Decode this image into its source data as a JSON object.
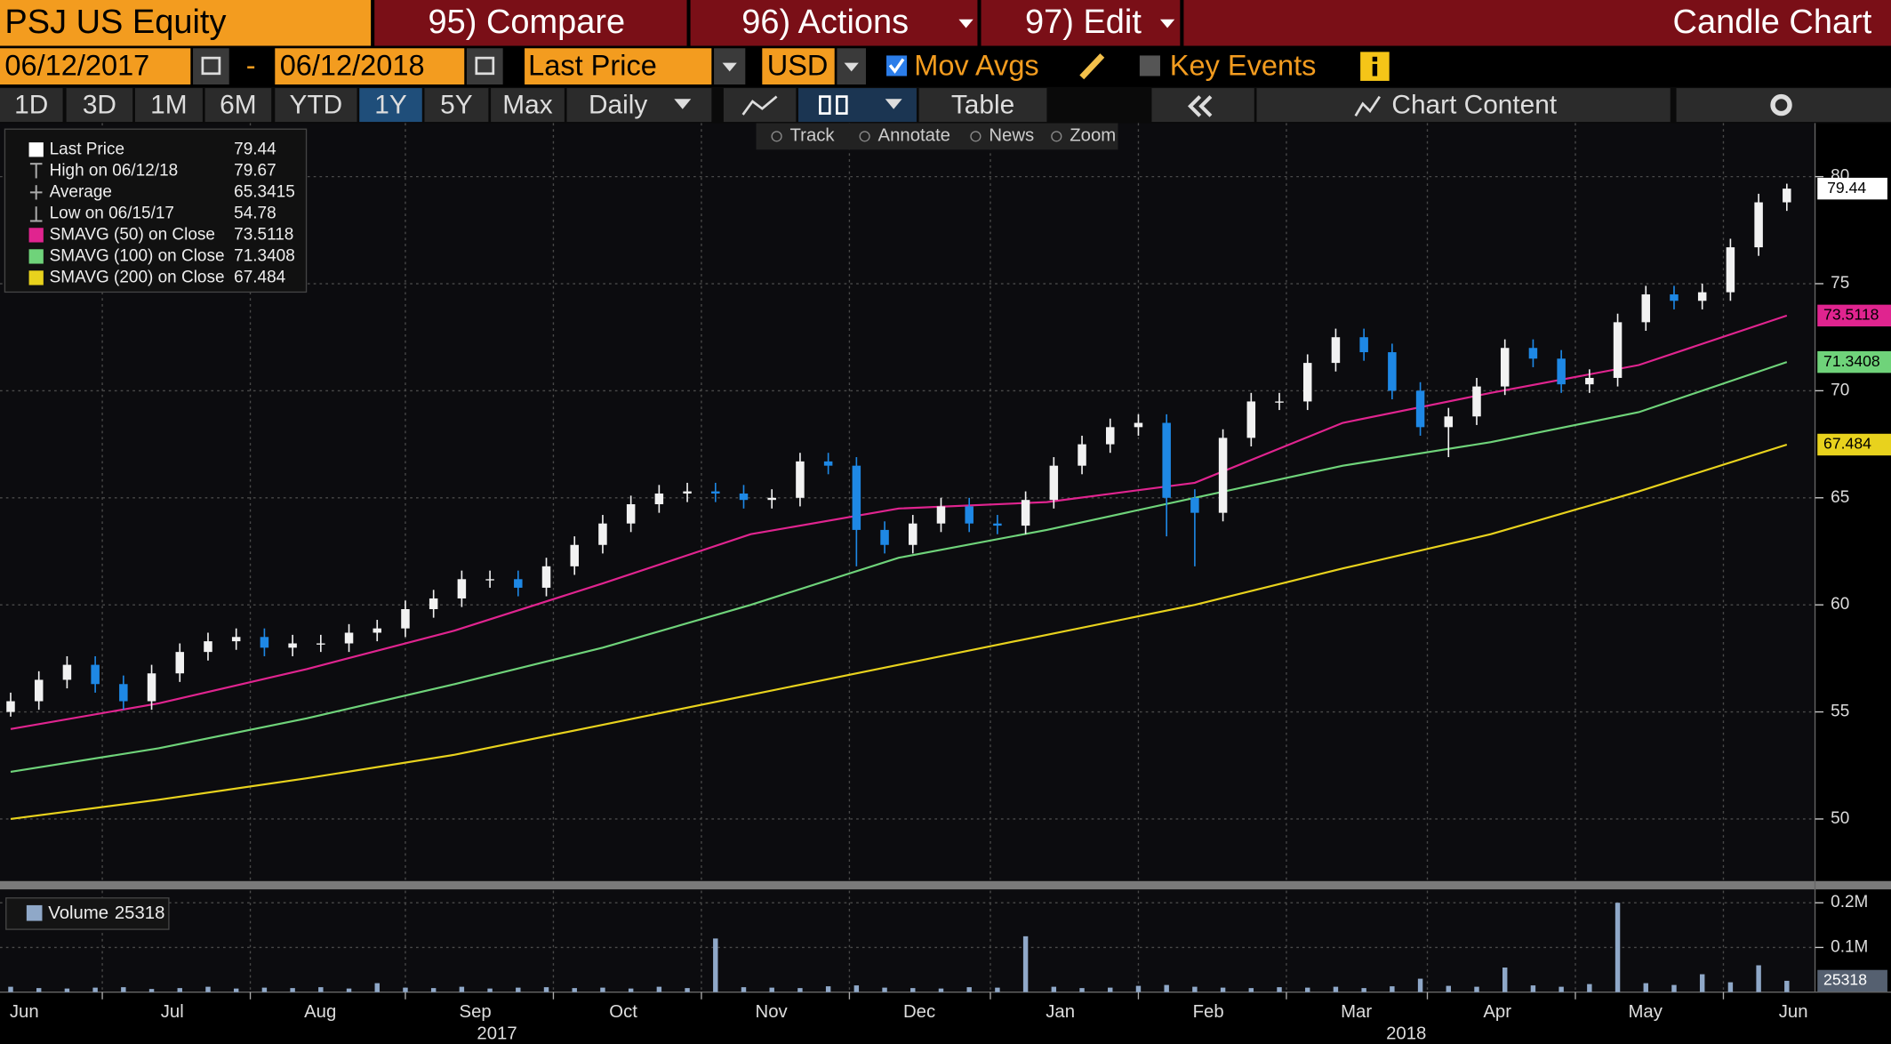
{
  "ui": {
    "ticker": "PSJ US Equity",
    "compare": "95) Compare",
    "actions": "96) Actions",
    "edit": "97) Edit",
    "title": "Candle Chart",
    "start_date": "06/12/2017",
    "date_sep": "-",
    "end_date": "06/12/2018",
    "field": "Last Price",
    "currency": "USD",
    "mov_avgs": "Mov Avgs",
    "key_events": "Key Events",
    "periods": [
      "1D",
      "3D",
      "1M",
      "6M",
      "YTD",
      "1Y",
      "5Y",
      "Max"
    ],
    "frequency": "Daily",
    "table": "Table",
    "chart_content": "Chart Content",
    "tools": [
      "Track",
      "Annotate",
      "News",
      "Zoom"
    ]
  },
  "chart_data": {
    "type": "candlestick",
    "name": "Last Price",
    "up_color": "#f2f2f2",
    "down_color": "#1e88e5",
    "grid": true,
    "xlim": [
      -1,
      256
    ],
    "xticks": [
      {
        "value": -8,
        "label": "Jun"
      },
      {
        "value": 13,
        "label": "Jul"
      },
      {
        "value": 34,
        "label": "Aug"
      },
      {
        "value": 56,
        "label": "Sep"
      },
      {
        "value": 77,
        "label": "Oct"
      },
      {
        "value": 98,
        "label": "Nov"
      },
      {
        "value": 119,
        "label": "Dec"
      },
      {
        "value": 139,
        "label": "Jan"
      },
      {
        "value": 160,
        "label": "Feb"
      },
      {
        "value": 181,
        "label": "Mar"
      },
      {
        "value": 201,
        "label": "Apr"
      },
      {
        "value": 222,
        "label": "May"
      },
      {
        "value": 243,
        "label": "Jun"
      }
    ],
    "year_ticks": [
      {
        "value": 69,
        "label": "2017"
      },
      {
        "value": 198,
        "label": "2018"
      }
    ],
    "ylim": [
      47.1,
      82.5
    ],
    "yticks": [
      50,
      55,
      60,
      65,
      70,
      75,
      80
    ],
    "x": [
      0,
      4,
      8,
      12,
      16,
      20,
      24,
      28,
      32,
      36,
      40,
      44,
      48,
      52,
      56,
      60,
      64,
      68,
      72,
      76,
      80,
      84,
      88,
      92,
      96,
      100,
      104,
      108,
      112,
      116,
      120,
      124,
      128,
      132,
      136,
      140,
      144,
      148,
      152,
      156,
      160,
      164,
      168,
      172,
      176,
      180,
      184,
      188,
      192,
      196,
      200,
      204,
      208,
      212,
      216,
      220,
      224,
      228,
      232,
      236,
      240,
      244,
      248,
      252
    ],
    "open": [
      55.0,
      55.5,
      56.5,
      57.2,
      56.3,
      55.5,
      56.8,
      57.8,
      58.3,
      58.5,
      58.0,
      58.2,
      58.2,
      58.7,
      58.9,
      59.8,
      60.3,
      61.2,
      61.2,
      60.8,
      61.8,
      62.8,
      63.8,
      64.7,
      65.2,
      65.3,
      65.2,
      64.9,
      65.0,
      66.7,
      66.5,
      63.5,
      62.8,
      63.8,
      64.6,
      63.8,
      63.7,
      64.9,
      66.5,
      67.5,
      68.3,
      68.5,
      65.0,
      64.3,
      67.8,
      69.5,
      69.5,
      71.3,
      72.5,
      71.8,
      70.0,
      68.3,
      68.8,
      70.2,
      72.0,
      71.5,
      70.3,
      70.6,
      73.2,
      74.5,
      74.2,
      74.6,
      76.7,
      78.8
    ],
    "high": [
      55.9,
      56.9,
      57.6,
      57.6,
      56.7,
      57.2,
      58.2,
      58.7,
      58.9,
      58.9,
      58.6,
      58.6,
      59.1,
      59.3,
      60.2,
      60.7,
      61.6,
      61.6,
      61.6,
      62.2,
      63.2,
      64.2,
      65.1,
      65.6,
      65.7,
      65.7,
      65.6,
      65.4,
      67.1,
      67.1,
      66.9,
      63.9,
      64.2,
      65.0,
      65.0,
      64.2,
      65.3,
      66.9,
      67.9,
      68.7,
      68.9,
      68.9,
      65.4,
      68.2,
      69.9,
      69.9,
      71.7,
      72.9,
      72.9,
      72.2,
      70.4,
      69.2,
      70.6,
      72.4,
      72.4,
      71.9,
      71.0,
      73.6,
      74.9,
      74.9,
      75.0,
      77.1,
      79.2,
      79.67
    ],
    "low": [
      54.78,
      55.1,
      56.1,
      55.9,
      55.1,
      55.1,
      56.4,
      57.4,
      57.9,
      57.6,
      57.6,
      57.8,
      57.8,
      58.3,
      58.5,
      59.4,
      59.9,
      60.8,
      60.4,
      60.4,
      61.4,
      62.4,
      63.4,
      64.3,
      64.8,
      64.8,
      64.5,
      64.5,
      64.6,
      66.1,
      61.8,
      62.4,
      62.4,
      63.4,
      63.4,
      63.3,
      63.3,
      64.5,
      66.1,
      67.1,
      67.9,
      63.2,
      61.8,
      63.9,
      67.4,
      69.1,
      69.1,
      70.9,
      71.4,
      69.6,
      67.9,
      66.9,
      68.4,
      69.8,
      71.1,
      69.9,
      69.9,
      70.2,
      72.8,
      73.8,
      73.8,
      74.2,
      76.3,
      78.4
    ],
    "close": [
      55.5,
      56.5,
      57.2,
      56.3,
      55.5,
      56.8,
      57.8,
      58.3,
      58.5,
      58.0,
      58.2,
      58.2,
      58.7,
      58.9,
      59.8,
      60.3,
      61.2,
      61.2,
      60.8,
      61.8,
      62.8,
      63.8,
      64.7,
      65.2,
      65.3,
      65.2,
      64.9,
      65.0,
      66.7,
      66.5,
      63.5,
      62.8,
      63.8,
      64.6,
      63.8,
      63.7,
      64.9,
      66.5,
      67.5,
      68.3,
      68.5,
      65.0,
      64.3,
      67.8,
      69.5,
      69.5,
      71.3,
      72.5,
      71.8,
      70.0,
      68.3,
      68.8,
      70.2,
      72.0,
      71.5,
      70.3,
      70.6,
      73.2,
      74.5,
      74.2,
      74.6,
      76.7,
      78.8,
      79.44
    ],
    "stats": [
      {
        "label": "High on 06/12/18",
        "value": 79.67
      },
      {
        "label": "Average",
        "value": 65.3415
      },
      {
        "label": "Low on 06/15/17",
        "value": 54.78
      }
    ],
    "series": [
      {
        "name": "SMAVG (50) on Close",
        "color": "#e0248f",
        "x": [
          0,
          21,
          42,
          63,
          84,
          105,
          126,
          147,
          168,
          189,
          210,
          231,
          252
        ],
        "values": [
          54.2,
          55.4,
          57.0,
          58.8,
          61.0,
          63.3,
          64.5,
          64.8,
          65.7,
          68.5,
          69.9,
          71.2,
          73.5118
        ]
      },
      {
        "name": "SMAVG (100) on Close",
        "color": "#6fd37a",
        "x": [
          0,
          21,
          42,
          63,
          84,
          105,
          126,
          147,
          168,
          189,
          210,
          231,
          252
        ],
        "values": [
          52.2,
          53.3,
          54.7,
          56.3,
          58.0,
          60.0,
          62.2,
          63.5,
          65.0,
          66.5,
          67.6,
          69.0,
          71.3408
        ]
      },
      {
        "name": "SMAVG (200) on Close",
        "color": "#e8d21d",
        "x": [
          0,
          21,
          42,
          63,
          84,
          105,
          126,
          147,
          168,
          189,
          210,
          231,
          252
        ],
        "values": [
          50.0,
          50.9,
          51.9,
          53.0,
          54.4,
          55.8,
          57.2,
          58.6,
          60.0,
          61.7,
          63.3,
          65.3,
          67.484
        ]
      }
    ],
    "volume": {
      "name": "Volume",
      "color": "#8fa8c8",
      "ylim": [
        0,
        227000
      ],
      "yticks": [
        {
          "value": 100000,
          "label": "0.1M"
        },
        {
          "value": 200000,
          "label": "0.2M"
        }
      ],
      "values": [
        12000,
        9000,
        8000,
        10000,
        11000,
        7000,
        9000,
        12000,
        8000,
        10000,
        9000,
        11000,
        8000,
        20000,
        10000,
        9000,
        12000,
        8000,
        10000,
        11000,
        9000,
        10000,
        8000,
        12000,
        9000,
        120000,
        11000,
        10000,
        9000,
        13000,
        15000,
        10000,
        9000,
        8000,
        11000,
        10000,
        125000,
        12000,
        9000,
        10000,
        14000,
        16000,
        12000,
        10000,
        9000,
        11000,
        10000,
        12000,
        9000,
        13000,
        30000,
        14000,
        12000,
        55000,
        15000,
        12000,
        18000,
        200000,
        20000,
        16000,
        40000,
        22000,
        60000,
        25318
      ]
    }
  }
}
